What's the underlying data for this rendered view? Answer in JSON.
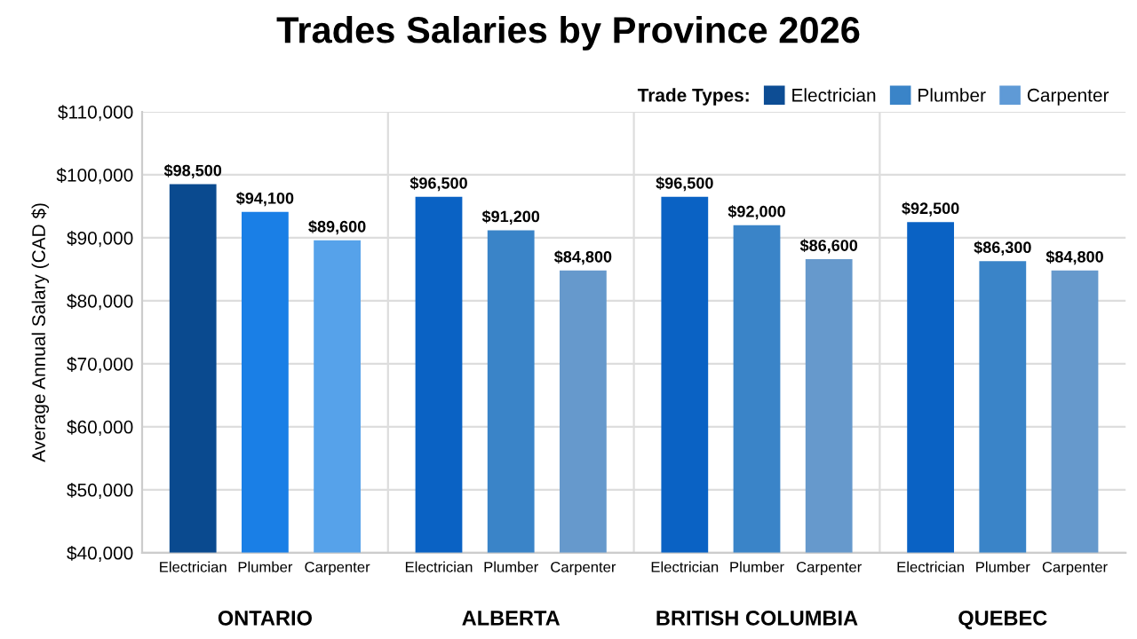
{
  "chart_data": {
    "type": "bar",
    "title": "Trades Salaries by Province 2026",
    "ylabel": "Average Annual Salary (CAD $)",
    "legend_title": "Trade Types:",
    "categories": [
      "ONTARIO",
      "ALBERTA",
      "BRITISH COLUMBIA",
      "QUEBEC"
    ],
    "series": [
      {
        "name": "Electrician",
        "color": "#0d4d94",
        "colors": [
          "#0a4a8f",
          "#0a62c4",
          "#0a62c4",
          "#0a62c4"
        ],
        "values": [
          98500,
          96500,
          96500,
          92500
        ],
        "value_labels": [
          "$98,500",
          "$96,500",
          "$96,500",
          "$92,500"
        ]
      },
      {
        "name": "Plumber",
        "color": "#3a84c8",
        "colors": [
          "#1a7fe6",
          "#3a84c8",
          "#3a84c8",
          "#3a84c8"
        ],
        "values": [
          94100,
          91200,
          92000,
          86300
        ],
        "value_labels": [
          "$94,100",
          "$91,200",
          "$92,000",
          "$86,300"
        ]
      },
      {
        "name": "Carpenter",
        "color": "#5f9ad6",
        "colors": [
          "#56a2ea",
          "#6699cc",
          "#6699cc",
          "#6699cc"
        ],
        "values": [
          89600,
          84800,
          86600,
          84800
        ],
        "value_labels": [
          "$89,600",
          "$84,800",
          "$86,600",
          "$84,800"
        ]
      }
    ],
    "ylim": [
      40000,
      110000
    ],
    "yticks": [
      {
        "value": 40000,
        "label": "$40,000"
      },
      {
        "value": 50000,
        "label": "$50,000"
      },
      {
        "value": 60000,
        "label": "$60,000"
      },
      {
        "value": 70000,
        "label": "$70,000"
      },
      {
        "value": 80000,
        "label": "$80,000"
      },
      {
        "value": 90000,
        "label": "$90,000"
      },
      {
        "value": 100000,
        "label": "$100,000"
      },
      {
        "value": 110000,
        "label": "$110,000"
      }
    ],
    "grid": true,
    "legend": "top right"
  }
}
